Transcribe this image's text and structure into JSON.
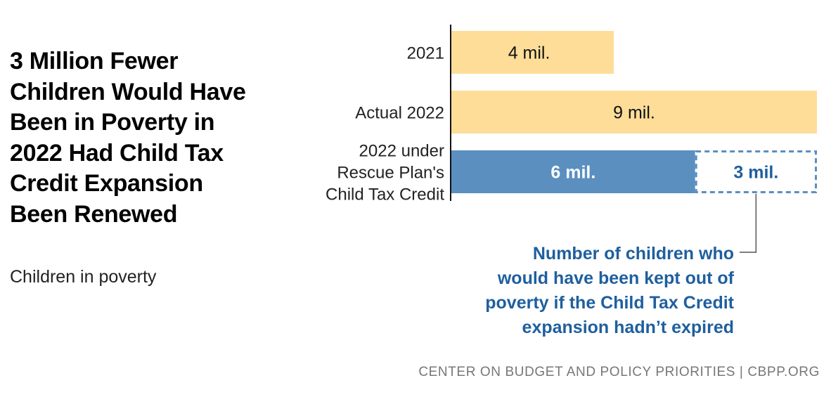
{
  "title": "3 Million Fewer Children Would Have Been in Poverty in 2022 Had Child Tax Credit Expansion Been Renewed",
  "subtitle": "Children in poverty",
  "source": "CENTER ON BUDGET AND POLICY PRIORITIES | CBPP.ORG",
  "annotation": [
    "Number of children who",
    "would have been kept out of",
    "poverty if the Child Tax Credit",
    "expansion hadn’t expired"
  ],
  "colors": {
    "yellow": "#fedd99",
    "blue": "#5a8fc0",
    "dashed_outline": "#5a8fc0",
    "annotation_text": "#1f5f9e"
  },
  "chart_data": {
    "type": "bar",
    "orientation": "horizontal",
    "stacked": true,
    "unit": "million children",
    "xlim": [
      0,
      9
    ],
    "categories": [
      [
        "2021"
      ],
      [
        "Actual 2022"
      ],
      [
        "2022 under",
        "Rescue Plan's",
        "Child Tax Credit"
      ]
    ],
    "series": [
      {
        "values": [
          4,
          9,
          6
        ],
        "labels": [
          "4 mil.",
          "9 mil.",
          "6 mil."
        ],
        "style": [
          "yellow",
          "yellow",
          "blue"
        ]
      },
      {
        "values": [
          null,
          null,
          3
        ],
        "labels": [
          null,
          null,
          "3 mil."
        ],
        "style": [
          null,
          null,
          "dashed-outline"
        ]
      }
    ]
  }
}
